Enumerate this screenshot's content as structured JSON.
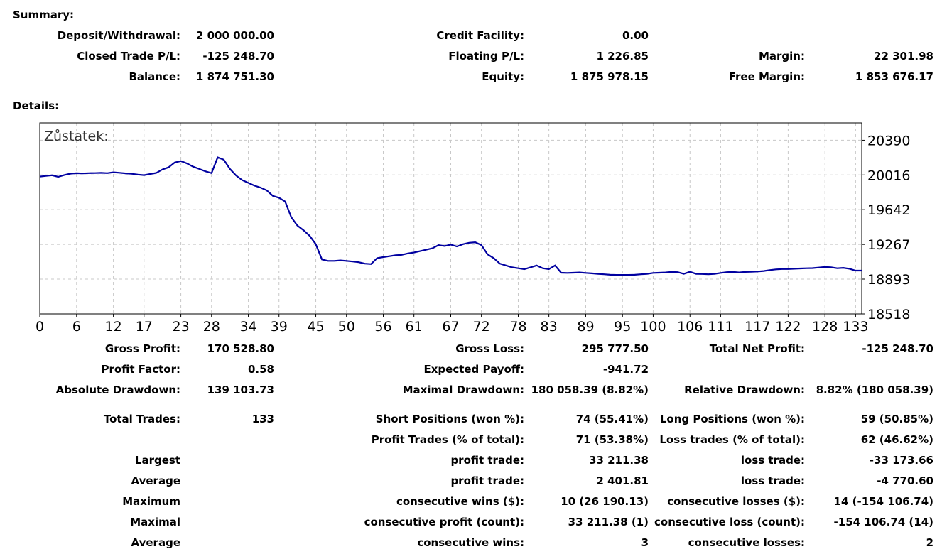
{
  "summary": {
    "title": "Summary:",
    "deposit_label": "Deposit/Withdrawal:",
    "deposit_value": "2 000 000.00",
    "credit_label": "Credit Facility:",
    "credit_value": "0.00",
    "closed_pl_label": "Closed Trade P/L:",
    "closed_pl_value": "-125 248.70",
    "floating_pl_label": "Floating P/L:",
    "floating_pl_value": "1 226.85",
    "margin_label": "Margin:",
    "margin_value": "22 301.98",
    "balance_label": "Balance:",
    "balance_value": "1 874 751.30",
    "equity_label": "Equity:",
    "equity_value": "1 875 978.15",
    "free_margin_label": "Free Margin:",
    "free_margin_value": "1 853 676.17"
  },
  "details": {
    "title": "Details:",
    "gross_profit_label": "Gross Profit:",
    "gross_profit_value": "170 528.80",
    "gross_loss_label": "Gross Loss:",
    "gross_loss_value": "295 777.50",
    "total_net_label": "Total Net Profit:",
    "total_net_value": "-125 248.70",
    "profit_factor_label": "Profit Factor:",
    "profit_factor_value": "0.58",
    "expected_payoff_label": "Expected Payoff:",
    "expected_payoff_value": "-941.72",
    "abs_dd_label": "Absolute Drawdown:",
    "abs_dd_value": "139 103.73",
    "max_dd_label": "Maximal Drawdown:",
    "max_dd_value": "180 058.39 (8.82%)",
    "rel_dd_label": "Relative Drawdown:",
    "rel_dd_value": "8.82% (180 058.39)",
    "total_trades_label": "Total Trades:",
    "total_trades_value": "133",
    "short_label": "Short Positions (won %):",
    "short_value": "74 (55.41%)",
    "long_label": "Long Positions (won %):",
    "long_value": "59 (50.85%)",
    "profit_trades_label": "Profit Trades (% of total):",
    "profit_trades_value": "71 (53.38%)",
    "loss_trades_label": "Loss trades (% of total):",
    "loss_trades_value": "62 (46.62%)",
    "largest_label": "Largest",
    "largest_profit_label": "profit trade:",
    "largest_profit_value": "33 211.38",
    "largest_loss_label": "loss trade:",
    "largest_loss_value": "-33 173.66",
    "average_label": "Average",
    "average_profit_label": "profit trade:",
    "average_profit_value": "2 401.81",
    "average_loss_label": "loss trade:",
    "average_loss_value": "-4 770.60",
    "maximum_label": "Maximum",
    "max_cons_wins_label": "consecutive wins ($):",
    "max_cons_wins_value": "10 (26 190.13)",
    "max_cons_losses_label": "consecutive losses ($):",
    "max_cons_losses_value": "14 (-154 106.74)",
    "maximal_label": "Maximal",
    "maximal_profit_label": "consecutive profit (count):",
    "maximal_profit_value": "33 211.38 (1)",
    "maximal_loss_label": "consecutive loss (count):",
    "maximal_loss_value": "-154 106.74 (14)",
    "average2_label": "Average",
    "avg_cons_wins_label": "consecutive wins:",
    "avg_cons_wins_value": "3",
    "avg_cons_losses_label": "consecutive losses:",
    "avg_cons_losses_value": "2"
  },
  "chart_data": {
    "type": "line",
    "title": "Zůstatek:",
    "line_color": "#0000a0",
    "x_ticks": [
      "0",
      "6",
      "12",
      "17",
      "23",
      "28",
      "34",
      "39",
      "45",
      "50",
      "56",
      "61",
      "67",
      "72",
      "78",
      "83",
      "89",
      "95",
      "100",
      "106",
      "111",
      "117",
      "122",
      "128",
      "133"
    ],
    "y_ticks": [
      "20390",
      "20016",
      "19642",
      "19267",
      "18893",
      "18518"
    ],
    "xlim": [
      0,
      134
    ],
    "ylim": [
      18518,
      20577
    ],
    "grid": true,
    "series": [
      {
        "x": [
          0,
          1,
          2,
          3,
          4,
          5,
          6,
          7,
          8,
          9,
          10,
          11,
          12,
          13,
          14,
          15,
          16,
          17,
          18,
          19,
          20,
          21,
          22,
          23,
          24,
          25,
          26,
          27,
          28,
          29,
          30,
          31,
          32,
          33,
          34,
          35,
          36,
          37,
          38,
          39,
          40,
          41,
          42,
          43,
          44,
          45,
          46,
          47,
          48,
          49,
          50,
          51,
          52,
          53,
          54,
          55,
          56,
          57,
          58,
          59,
          60,
          61,
          62,
          63,
          64,
          65,
          66,
          67,
          68,
          69,
          70,
          71,
          72,
          73,
          74,
          75,
          76,
          77,
          78,
          79,
          80,
          81,
          82,
          83,
          84,
          85,
          86,
          87,
          88,
          89,
          90,
          91,
          92,
          93,
          94,
          95,
          96,
          97,
          98,
          99,
          100,
          101,
          102,
          103,
          104,
          105,
          106,
          107,
          108,
          109,
          110,
          111,
          112,
          113,
          114,
          115,
          116,
          117,
          118,
          119,
          120,
          121,
          122,
          123,
          124,
          125,
          126,
          127,
          128,
          129,
          130,
          131,
          132,
          133,
          134
        ],
        "y": [
          19998,
          20005,
          20012,
          19995,
          20015,
          20030,
          20034,
          20032,
          20035,
          20036,
          20038,
          20035,
          20044,
          20039,
          20033,
          20028,
          20020,
          20014,
          20026,
          20038,
          20075,
          20098,
          20150,
          20165,
          20140,
          20105,
          20080,
          20055,
          20035,
          20205,
          20180,
          20080,
          20010,
          19960,
          19930,
          19900,
          19880,
          19850,
          19790,
          19770,
          19730,
          19560,
          19470,
          19420,
          19360,
          19270,
          19105,
          19090,
          19090,
          19095,
          19090,
          19083,
          19075,
          19060,
          19055,
          19120,
          19130,
          19140,
          19150,
          19155,
          19170,
          19180,
          19195,
          19210,
          19225,
          19260,
          19250,
          19265,
          19245,
          19270,
          19285,
          19290,
          19260,
          19160,
          19120,
          19060,
          19040,
          19020,
          19010,
          19000,
          19020,
          19040,
          19010,
          19000,
          19040,
          18962,
          18960,
          18962,
          18965,
          18960,
          18955,
          18950,
          18945,
          18940,
          18938,
          18938,
          18938,
          18940,
          18945,
          18950,
          18960,
          18962,
          18965,
          18970,
          18968,
          18950,
          18972,
          18950,
          18948,
          18945,
          18950,
          18960,
          18968,
          18970,
          18965,
          18970,
          18972,
          18975,
          18980,
          18990,
          18998,
          19002,
          19002,
          19005,
          19008,
          19010,
          19012,
          19018,
          19025,
          19020,
          19010,
          19015,
          19005,
          18985,
          18985
        ],
        "name": ""
      }
    ]
  }
}
